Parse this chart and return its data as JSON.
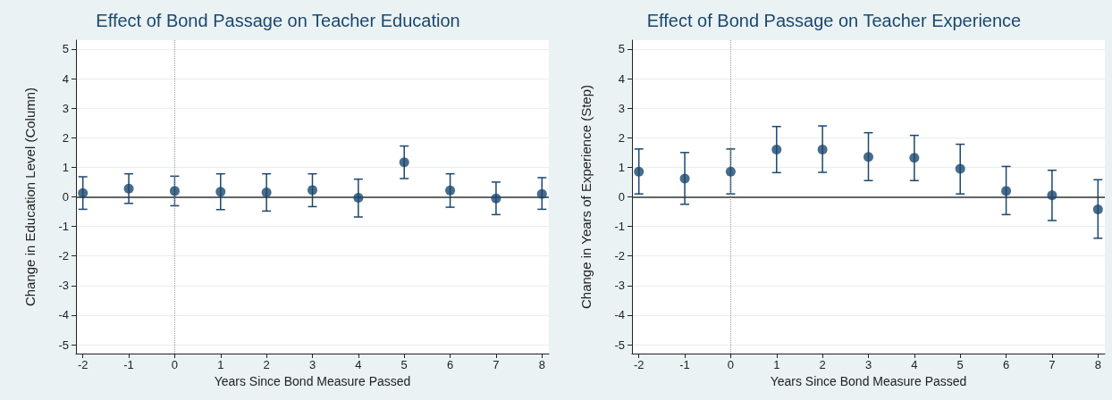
{
  "chart_data": [
    {
      "type": "scatter",
      "title": "Effect of Bond Passage on Teacher Education",
      "xlabel": "Years Since Bond Measure Passed",
      "ylabel": "Change in Education Level (Column)",
      "x": [
        -2,
        -1,
        0,
        1,
        2,
        3,
        4,
        5,
        6,
        7,
        8
      ],
      "series": [
        {
          "color": "#1a476f",
          "values": [
            0.13,
            0.28,
            0.2,
            0.17,
            0.15,
            0.23,
            -0.03,
            1.17,
            0.22,
            -0.05,
            0.1
          ],
          "errors": [
            [
              -0.42,
              0.68
            ],
            [
              -0.22,
              0.78
            ],
            [
              -0.3,
              0.7
            ],
            [
              -0.43,
              0.78
            ],
            [
              -0.48,
              0.78
            ],
            [
              -0.33,
              0.78
            ],
            [
              -0.68,
              0.6
            ],
            [
              0.62,
              1.72
            ],
            [
              -0.35,
              0.78
            ],
            [
              -0.6,
              0.5
            ],
            [
              -0.42,
              0.65
            ]
          ]
        }
      ],
      "xlim": [
        -2.15,
        8.15
      ],
      "xticks": [
        -2,
        -1,
        0,
        1,
        2,
        3,
        4,
        5,
        6,
        7,
        8
      ],
      "ylim": [
        -5.3,
        5.3
      ],
      "yticks": [
        -5,
        -4,
        -3,
        -2,
        -1,
        0,
        1,
        2,
        3,
        4,
        5
      ],
      "ref_lines": [
        {
          "axis": "y",
          "value": 0,
          "color": "#333333",
          "line_style": "solid"
        },
        {
          "axis": "x",
          "value": 0,
          "color": "#999999",
          "line_style": "dotted"
        }
      ],
      "grid": "y",
      "marker": "circle",
      "legend": false
    },
    {
      "type": "scatter",
      "title": "Effect of Bond Passage on Teacher Experience",
      "xlabel": "Years Since Bond Measure Passed",
      "ylabel": "Change in Years of Experience (Step)",
      "x": [
        -2,
        -1,
        0,
        1,
        2,
        3,
        4,
        5,
        6,
        7,
        8
      ],
      "series": [
        {
          "color": "#1a476f",
          "values": [
            0.85,
            0.62,
            0.85,
            1.6,
            1.6,
            1.35,
            1.32,
            0.95,
            0.2,
            0.05,
            -0.42
          ],
          "errors": [
            [
              0.1,
              1.62
            ],
            [
              -0.25,
              1.5
            ],
            [
              0.1,
              1.62
            ],
            [
              0.82,
              2.38
            ],
            [
              0.83,
              2.4
            ],
            [
              0.55,
              2.17
            ],
            [
              0.55,
              2.08
            ],
            [
              0.1,
              1.78
            ],
            [
              -0.6,
              1.03
            ],
            [
              -0.8,
              0.9
            ],
            [
              -1.4,
              0.58
            ]
          ]
        }
      ],
      "xlim": [
        -2.15,
        8.15
      ],
      "xticks": [
        -2,
        -1,
        0,
        1,
        2,
        3,
        4,
        5,
        6,
        7,
        8
      ],
      "ylim": [
        -5.3,
        5.3
      ],
      "yticks": [
        -5,
        -4,
        -3,
        -2,
        -1,
        0,
        1,
        2,
        3,
        4,
        5
      ],
      "ref_lines": [
        {
          "axis": "y",
          "value": 0,
          "color": "#333333",
          "line_style": "solid"
        },
        {
          "axis": "x",
          "value": 0,
          "color": "#999999",
          "line_style": "dotted"
        }
      ],
      "grid": "y",
      "marker": "circle",
      "legend": false
    }
  ]
}
